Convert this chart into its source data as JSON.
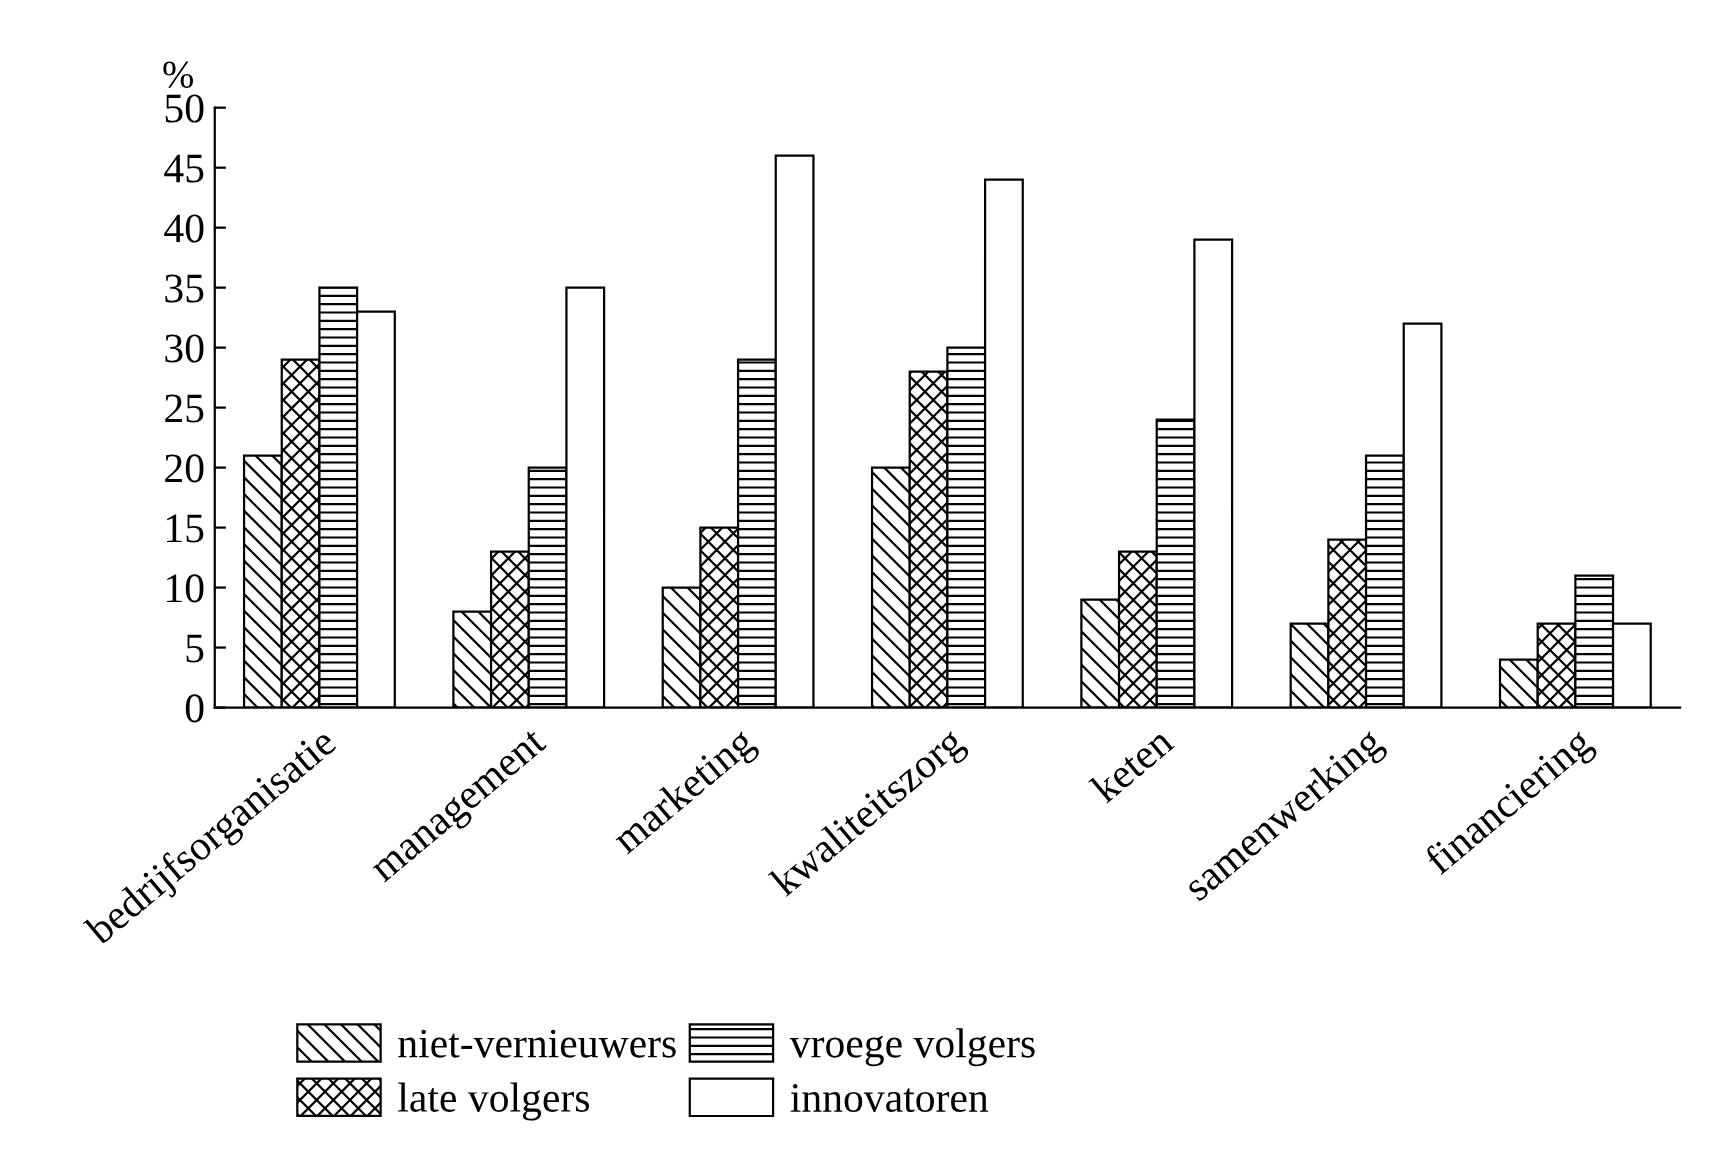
{
  "chart_data": {
    "type": "bar",
    "ylabel": "%",
    "categories": [
      "bedrijfsorganisatie",
      "management",
      "marketing",
      "kwaliteitszorg",
      "keten",
      "samenwerking",
      "financiering"
    ],
    "series": [
      {
        "name": "niet-vernieuwers",
        "color": "#000000",
        "values": [
          21,
          8,
          10,
          20,
          9,
          7,
          4
        ]
      },
      {
        "name": "late volgers",
        "color": "#000000",
        "values": [
          29,
          13,
          15,
          28,
          13,
          14,
          7
        ]
      },
      {
        "name": "vroege volgers",
        "color": "#000000",
        "values": [
          35,
          20,
          29,
          30,
          24,
          21,
          11
        ]
      },
      {
        "name": "innovatoren",
        "color": "#ffffff",
        "values": [
          33,
          35,
          46,
          44,
          39,
          32,
          7
        ]
      }
    ],
    "ylim": [
      0,
      50
    ],
    "yticks": [
      0,
      5,
      10,
      15,
      20,
      25,
      30,
      35,
      40,
      45,
      50
    ],
    "grid": false,
    "legend": "bottom"
  }
}
